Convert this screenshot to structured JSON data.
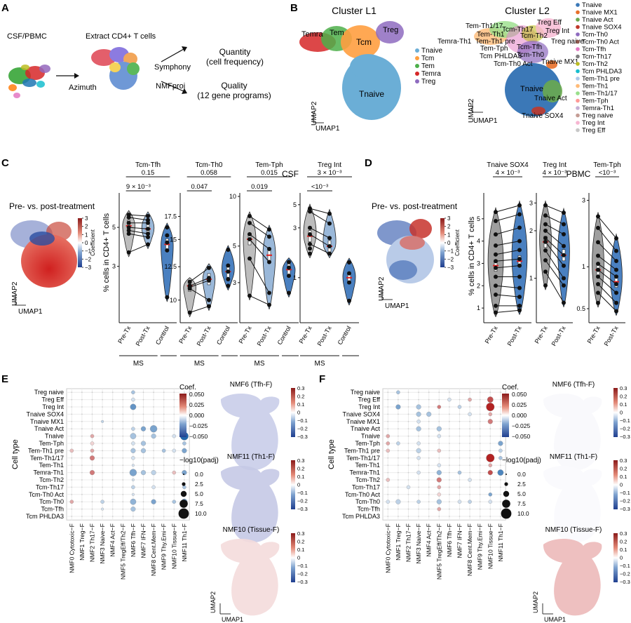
{
  "panels": {
    "A": "A",
    "B": "B",
    "C": "C",
    "D": "D",
    "E": "E",
    "F": "F"
  },
  "panelA": {
    "source": "CSF/PBMC",
    "extract": "Extract CD4+ T cells",
    "azimuth": "Azimuth",
    "symphony": "Symphony",
    "nmfproj": "NMFproj",
    "quantity": "Quantity",
    "quantity_sub": "(cell frequency)",
    "quality": "Quality",
    "quality_sub": "(12 gene programs)"
  },
  "panelB": {
    "l1_title": "Cluster L1",
    "l2_title": "Cluster L2",
    "l1_labels": [
      "Temra",
      "Tem",
      "Tcm",
      "Treg",
      "Tnaive"
    ],
    "l1_legend": [
      {
        "name": "Tnaive",
        "color": "#6baed6"
      },
      {
        "name": "Tcm",
        "color": "#ff9f40"
      },
      {
        "name": "Tem",
        "color": "#4daf4a"
      },
      {
        "name": "Temra",
        "color": "#d62728"
      },
      {
        "name": "Treg",
        "color": "#8e6bbf"
      }
    ],
    "l2_labels": [
      "Tem-Th1/17",
      "Tcm-Th17",
      "Treg Eff",
      "Tem-Th1",
      "Tcm-Th2",
      "Treg Int",
      "Temra-Th1",
      "Tem-Th1 pre",
      "Treg naive",
      "Tem-Tph",
      "Tcm-Tfh",
      "Tcm PHLDA3",
      "Tcm-Th0",
      "Tcm-Th0 Act",
      "Tnaive MX1",
      "Tnaive",
      "Tnaive Act",
      "Tnaive SOX4"
    ],
    "l2_legend": [
      {
        "name": "Tnaive",
        "color": "#3b78b7"
      },
      {
        "name": "Tnaive MX1",
        "color": "#e8702a"
      },
      {
        "name": "Tnaive Act",
        "color": "#6aa84f"
      },
      {
        "name": "Tnaive SOX4",
        "color": "#c0392b"
      },
      {
        "name": "Tcm-Th0",
        "color": "#8e6bbf"
      },
      {
        "name": "Tcm-Th0 Act",
        "color": "#8c564b"
      },
      {
        "name": "Tcm-Tfh",
        "color": "#e377c2"
      },
      {
        "name": "Tcm-Th17",
        "color": "#7f7f7f"
      },
      {
        "name": "Tcm-Th2",
        "color": "#bcbd22"
      },
      {
        "name": "Tcm PHLDA3",
        "color": "#17becf"
      },
      {
        "name": "Tem-Th1 pre",
        "color": "#aec7e8"
      },
      {
        "name": "Tem-Th1",
        "color": "#ffbb78"
      },
      {
        "name": "Tem-Th1/17",
        "color": "#98df8a"
      },
      {
        "name": "Tem-Tph",
        "color": "#ff9896"
      },
      {
        "name": "Temra-Th1",
        "color": "#c5b0d5"
      },
      {
        "name": "Treg naive",
        "color": "#c49c94"
      },
      {
        "name": "Treg Int",
        "color": "#f7b6d2"
      },
      {
        "name": "Treg Eff",
        "color": "#c7c7c7"
      }
    ],
    "axis_x": "UMAP1",
    "axis_y": "UMAP2"
  },
  "panelC": {
    "title": "CSF",
    "umap_title": "Pre- vs. post-treatment",
    "colorbar_ticks": [
      "3",
      "2",
      "1",
      "0",
      "−1",
      "−2",
      "−3"
    ],
    "colorbar_label": "Coefficient",
    "ylabel": "% cells in CD4+ T cells",
    "group_label": "MS"
  },
  "panelD": {
    "title": "PBMC",
    "umap_title": "Pre- vs. post-treatment",
    "colorbar_ticks": [
      "3",
      "2",
      "1",
      "0",
      "−1",
      "−2",
      "−3"
    ],
    "colorbar_label": "Coefficient",
    "ylabel": "% cells in CD4+ T cells"
  },
  "dotplot": {
    "ylabel": "Cell type",
    "rows": [
      "Treg naive",
      "Treg Eff",
      "Treg Int",
      "Tnaive SOX4",
      "Tnaive MX1",
      "Tnaive Act",
      "Tnaive",
      "Tem-Tph",
      "Tem-Th1 pre",
      "Tem-Th1/17",
      "Tem-Th1",
      "Temra-Th1",
      "Tcm-Th2",
      "Tcm-Th17",
      "Tcm-Th0 Act",
      "Tcm-Th0",
      "Tcm-Tfh",
      "Tcm PHLDA3"
    ],
    "cols": [
      "NMF0 Cytotoxic−F",
      "NMF1 Treg−F",
      "NMF2 Th17−F",
      "NMF3 Naive−F",
      "NMF4 Act−F",
      "NMF5 TregEff/Th2−F",
      "NMF6 Tfh−F",
      "NMF7 IFN−F",
      "NMF8 Cent.Mem−F",
      "NMF9 Thy.Emi−F",
      "NMF10 Tissue−F",
      "NMF11 Th1−F"
    ],
    "coef_title": "Coef.",
    "coef_ticks": [
      "0.050",
      "0.025",
      "0.000",
      "−0.025",
      "−0.050"
    ],
    "size_title": "−log10(padj)",
    "size_ticks": [
      "0.0",
      "2.5",
      "5.0",
      "7.5",
      "10.0"
    ]
  },
  "umap_small": {
    "E": [
      "NMF6 (Tfh-F)",
      "NMF11 (Th1-F)",
      "NMF10 (Tissue-F)"
    ],
    "F": [
      "NMF6 (Tfh-F)",
      "NMF11 (Th1-F)",
      "NMF10 (Tissue-F)"
    ],
    "ticks": [
      "0.3",
      "0.2",
      "0.1",
      "0",
      "−0.1",
      "−0.2",
      "−0.3"
    ]
  },
  "chart_data": [
    {
      "type": "violin",
      "panel": "C",
      "subplot": "Tcm-Tfh",
      "title": "Tcm-Tfh",
      "categories": [
        "Pre-Tx",
        "Post-Tx",
        "Control"
      ],
      "group": "MS",
      "yscale": "log",
      "ylim": [
        1.5,
        7.5
      ],
      "yticks": [
        3,
        5
      ],
      "medians": [
        5.1,
        4.9,
        4.0
      ],
      "points": [
        [
          5.9,
          5.7,
          5.3,
          5.0,
          4.8,
          4.6,
          3.6
        ],
        [
          5.8,
          5.5,
          5.3,
          4.9,
          4.6,
          4.4,
          4.0
        ],
        [
          5.0,
          4.5,
          4.1,
          3.7,
          2.0
        ]
      ],
      "brackets": [
        {
          "label": "0.15",
          "from": 0,
          "to": 2,
          "row": 0
        },
        {
          "label": "9 × 10⁻³",
          "from": 0,
          "to": 1,
          "row": 1
        }
      ]
    },
    {
      "type": "violin",
      "panel": "C",
      "subplot": "Tcm-Th0",
      "title": "Tcm-Th0",
      "categories": [
        "Pre-Tx",
        "Post-Tx",
        "Control"
      ],
      "yscale": "log",
      "ylim": [
        8.8,
        20
      ],
      "yticks": [
        10.0,
        12.5,
        15.0,
        17.5
      ],
      "medians": [
        11.0,
        11.5,
        12.1
      ],
      "points": [
        [
          11.3,
          11.0,
          10.9,
          10.8,
          9.2
        ],
        [
          12.4,
          11.6,
          11.4,
          10.0,
          9.6
        ],
        [
          14.0,
          12.6,
          12.1,
          11.5,
          11.0
        ]
      ],
      "brackets": [
        {
          "label": "0.058",
          "from": 0,
          "to": 2,
          "row": 0
        },
        {
          "label": "0.047",
          "from": 0,
          "to": 1,
          "row": 1
        }
      ]
    },
    {
      "type": "violin",
      "panel": "C",
      "subplot": "Tem-Tph",
      "title": "Tem-Tph",
      "categories": [
        "Pre-Tx",
        "Post-Tx",
        "Control"
      ],
      "yscale": "log",
      "ylim": [
        1.8,
        10
      ],
      "yticks": [
        3,
        5,
        10
      ],
      "medians": [
        5.5,
        4.4,
        3.6
      ],
      "points": [
        [
          7.6,
          6.9,
          5.9,
          5.5,
          4.2,
          2.5
        ],
        [
          6.3,
          5.7,
          4.8,
          4.0,
          2.6,
          2.2
        ],
        [
          4.0,
          3.7,
          3.3,
          2.6
        ]
      ],
      "brackets": [
        {
          "label": "0.015",
          "from": 0,
          "to": 2,
          "row": 0
        },
        {
          "label": "0.019",
          "from": 0,
          "to": 1,
          "row": 1
        }
      ]
    },
    {
      "type": "violin",
      "panel": "C",
      "subplot": "Treg Int",
      "title": "Treg Int",
      "categories": [
        "Pre-Tx",
        "Post-Tx",
        "Control"
      ],
      "yscale": "log",
      "ylim": [
        0.4,
        6
      ],
      "yticks": [
        1,
        3,
        5
      ],
      "medians": [
        2.5,
        2.0,
        1.0
      ],
      "points": [
        [
          4.6,
          4.3,
          3.0,
          2.6,
          2.1,
          1.9,
          1.7
        ],
        [
          4.1,
          3.3,
          2.4,
          2.0,
          1.7
        ],
        [
          1.4,
          1.1,
          0.9,
          0.6
        ]
      ],
      "brackets": [
        {
          "label": "3 × 10⁻³",
          "from": 0,
          "to": 2,
          "row": 0
        },
        {
          "label": "<10⁻³",
          "from": 0,
          "to": 1,
          "row": 1
        }
      ]
    },
    {
      "type": "violin",
      "panel": "D",
      "subplot": "Tnaive SOX4",
      "title": "Tnaive SOX4",
      "categories": [
        "Pre-Tx",
        "Post-Tx"
      ],
      "yscale": "linear",
      "ylim": [
        0.5,
        6
      ],
      "yticks": [
        1,
        2,
        3,
        4,
        5
      ],
      "medians": [
        2.9,
        3.1
      ],
      "points": [
        [
          5.3,
          4.9,
          4.3,
          3.8,
          3.4,
          3.1,
          2.8,
          2.4,
          2.0,
          1.6,
          1.1,
          0.8
        ],
        [
          5.6,
          5.2,
          4.6,
          4.0,
          3.6,
          3.2,
          2.9,
          2.4,
          1.9,
          1.5,
          1.1,
          0.9
        ]
      ],
      "brackets": [
        {
          "label": "4 × 10⁻³",
          "from": 0,
          "to": 1,
          "row": 0
        }
      ]
    },
    {
      "type": "violin",
      "panel": "D",
      "subplot": "Treg Int",
      "title": "Treg Int",
      "categories": [
        "Pre-Tx",
        "Post-Tx"
      ],
      "yscale": "log",
      "ylim": [
        0.55,
        3.3
      ],
      "yticks": [
        1,
        2,
        3
      ],
      "medians": [
        1.7,
        1.4
      ],
      "points": [
        [
          2.9,
          2.5,
          2.2,
          2.0,
          1.8,
          1.7,
          1.5,
          1.3,
          1.1,
          0.9
        ],
        [
          2.6,
          2.2,
          1.9,
          1.6,
          1.4,
          1.2,
          1.0,
          0.9,
          0.7
        ]
      ],
      "brackets": [
        {
          "label": "4 × 10⁻³",
          "from": 0,
          "to": 1,
          "row": 0
        }
      ]
    },
    {
      "type": "violin",
      "panel": "D",
      "subplot": "Tem-Tph",
      "title": "Tem-Tph",
      "categories": [
        "Pre-Tx",
        "Post-Tx"
      ],
      "yscale": "log",
      "ylim": [
        0.42,
        3.2
      ],
      "yticks": [
        0.5,
        1.0,
        3.0
      ],
      "medians": [
        0.95,
        0.78
      ],
      "points": [
        [
          2.3,
          1.9,
          1.5,
          1.2,
          1.05,
          0.95,
          0.85,
          0.75,
          0.65,
          0.55
        ],
        [
          1.6,
          1.3,
          1.1,
          0.95,
          0.85,
          0.75,
          0.65,
          0.55,
          0.48
        ]
      ],
      "brackets": [
        {
          "label": "<10⁻³",
          "from": 0,
          "to": 1,
          "row": 0
        }
      ]
    },
    {
      "type": "dotplot",
      "panel": "E",
      "rows": 18,
      "cols": 12,
      "dots": [
        [
          0,
          6,
          -0.02,
          2
        ],
        [
          1,
          6,
          -0.01,
          2
        ],
        [
          2,
          6,
          -0.035,
          4
        ],
        [
          2,
          11,
          -0.035,
          3
        ],
        [
          4,
          3,
          -0.015,
          1
        ],
        [
          5,
          6,
          -0.015,
          2
        ],
        [
          5,
          7,
          -0.03,
          3
        ],
        [
          5,
          8,
          -0.03,
          5
        ],
        [
          5,
          11,
          -0.01,
          2
        ],
        [
          6,
          2,
          0.02,
          2
        ],
        [
          6,
          6,
          -0.02,
          4
        ],
        [
          6,
          8,
          -0.02,
          3
        ],
        [
          6,
          10,
          -0.01,
          2
        ],
        [
          6,
          11,
          -0.05,
          6
        ],
        [
          7,
          2,
          0.01,
          2
        ],
        [
          7,
          6,
          -0.01,
          2
        ],
        [
          7,
          7,
          -0.02,
          3
        ],
        [
          7,
          11,
          -0.02,
          2
        ],
        [
          8,
          0,
          0.015,
          2
        ],
        [
          8,
          2,
          0.02,
          2
        ],
        [
          8,
          6,
          -0.02,
          3
        ],
        [
          8,
          7,
          -0.02,
          3
        ],
        [
          8,
          9,
          -0.02,
          2
        ],
        [
          8,
          10,
          -0.01,
          2
        ],
        [
          8,
          11,
          -0.03,
          3
        ],
        [
          9,
          2,
          0.03,
          3
        ],
        [
          9,
          6,
          -0.01,
          2
        ],
        [
          10,
          6,
          -0.01,
          1
        ],
        [
          11,
          2,
          0.03,
          3
        ],
        [
          11,
          6,
          -0.03,
          5
        ],
        [
          11,
          7,
          -0.02,
          3
        ],
        [
          11,
          8,
          -0.015,
          3
        ],
        [
          11,
          10,
          0.015,
          2
        ],
        [
          11,
          11,
          -0.03,
          3
        ],
        [
          12,
          6,
          -0.01,
          1
        ],
        [
          13,
          6,
          -0.015,
          2
        ],
        [
          13,
          8,
          -0.01,
          2
        ],
        [
          13,
          11,
          -0.02,
          2
        ],
        [
          14,
          6,
          -0.01,
          1
        ],
        [
          15,
          0,
          0.02,
          2
        ],
        [
          15,
          3,
          -0.015,
          2
        ],
        [
          15,
          6,
          -0.025,
          4
        ],
        [
          15,
          8,
          -0.03,
          3
        ],
        [
          15,
          10,
          -0.02,
          2
        ],
        [
          15,
          11,
          -0.03,
          4
        ],
        [
          16,
          3,
          -0.01,
          1
        ],
        [
          16,
          6,
          -0.02,
          3
        ]
      ]
    },
    {
      "type": "dotplot",
      "panel": "F",
      "rows": 18,
      "cols": 12,
      "dots": [
        [
          0,
          1,
          -0.02,
          2
        ],
        [
          1,
          6,
          -0.01,
          2
        ],
        [
          1,
          8,
          0.02,
          2
        ],
        [
          1,
          10,
          0.04,
          4
        ],
        [
          2,
          1,
          -0.03,
          3
        ],
        [
          2,
          3,
          -0.02,
          3
        ],
        [
          2,
          5,
          0.03,
          2
        ],
        [
          2,
          7,
          -0.015,
          2
        ],
        [
          2,
          10,
          0.05,
          6
        ],
        [
          3,
          3,
          -0.02,
          3
        ],
        [
          3,
          4,
          -0.02,
          3
        ],
        [
          3,
          8,
          -0.01,
          2
        ],
        [
          3,
          10,
          0.02,
          2
        ],
        [
          4,
          3,
          -0.01,
          2
        ],
        [
          4,
          10,
          0.03,
          3
        ],
        [
          5,
          3,
          -0.02,
          3
        ],
        [
          5,
          5,
          -0.02,
          3
        ],
        [
          6,
          0,
          0.02,
          2
        ],
        [
          6,
          5,
          -0.01,
          2
        ],
        [
          7,
          0,
          0.02,
          2
        ],
        [
          7,
          1,
          -0.015,
          2
        ],
        [
          7,
          3,
          -0.01,
          2
        ],
        [
          7,
          11,
          -0.03,
          3
        ],
        [
          8,
          0,
          0.015,
          2
        ],
        [
          8,
          3,
          -0.015,
          3
        ],
        [
          8,
          5,
          0.015,
          2
        ],
        [
          8,
          11,
          -0.015,
          2
        ],
        [
          9,
          3,
          -0.01,
          2
        ],
        [
          9,
          10,
          0.05,
          6
        ],
        [
          9,
          11,
          -0.02,
          2
        ],
        [
          10,
          5,
          -0.01,
          2
        ],
        [
          10,
          10,
          0.02,
          2
        ],
        [
          11,
          3,
          -0.01,
          2
        ],
        [
          11,
          5,
          -0.025,
          3
        ],
        [
          11,
          7,
          -0.02,
          2
        ],
        [
          11,
          10,
          0.04,
          3
        ],
        [
          11,
          11,
          -0.04,
          4
        ],
        [
          12,
          0,
          0.015,
          2
        ],
        [
          12,
          5,
          0.03,
          3
        ],
        [
          12,
          8,
          -0.01,
          2
        ],
        [
          13,
          2,
          -0.01,
          2
        ],
        [
          13,
          5,
          0.02,
          2
        ],
        [
          14,
          5,
          0.01,
          2
        ],
        [
          14,
          10,
          -0.03,
          2
        ],
        [
          15,
          0,
          -0.01,
          2
        ],
        [
          15,
          1,
          -0.015,
          3
        ],
        [
          15,
          3,
          -0.015,
          2
        ],
        [
          15,
          5,
          -0.02,
          3
        ],
        [
          15,
          7,
          -0.01,
          2
        ],
        [
          15,
          8,
          -0.015,
          2
        ],
        [
          15,
          10,
          -0.01,
          2
        ],
        [
          16,
          5,
          0.02,
          2
        ]
      ]
    }
  ]
}
